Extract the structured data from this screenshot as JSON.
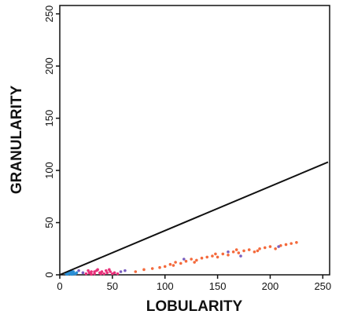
{
  "chart_data": {
    "type": "scatter",
    "xlabel": "LOBULARITY",
    "ylabel": "GRANULARITY",
    "xlim": [
      0,
      255
    ],
    "ylim": [
      0,
      255
    ],
    "xticks": [
      0,
      50,
      100,
      150,
      200,
      250
    ],
    "yticks": [
      0,
      50,
      100,
      150,
      200,
      250
    ],
    "series": [
      {
        "color": "#2a8fd6",
        "x": [
          6,
          8,
          10,
          12,
          14,
          9,
          11,
          13,
          7,
          15,
          10,
          12,
          16,
          8,
          11
        ],
        "values": [
          1,
          2,
          1,
          2,
          1,
          3,
          0.5,
          3,
          0.5,
          1,
          2,
          0.5,
          2,
          1,
          4
        ]
      },
      {
        "color": "#e8307a",
        "x": [
          25,
          28,
          30,
          33,
          35,
          38,
          40,
          42,
          45,
          48,
          50,
          52,
          30,
          36,
          44,
          27,
          39,
          47,
          33,
          55
        ],
        "values": [
          1,
          2,
          3,
          1,
          4,
          2,
          3,
          1,
          2,
          3,
          1,
          2,
          0.5,
          5,
          4,
          4,
          1,
          5,
          3,
          1
        ]
      },
      {
        "color": "#f46a3c",
        "x": [
          72,
          80,
          88,
          95,
          100,
          105,
          110,
          115,
          120,
          125,
          130,
          135,
          140,
          145,
          150,
          155,
          160,
          165,
          170,
          175,
          180,
          185,
          190,
          195,
          200,
          205,
          210,
          215,
          220,
          225,
          108,
          128,
          148,
          168,
          188
        ],
        "values": [
          3,
          5,
          6,
          7,
          8,
          10,
          12,
          11,
          13,
          15,
          14,
          16,
          17,
          18,
          17,
          20,
          19,
          22,
          21,
          23,
          24,
          22,
          25,
          26,
          27,
          25,
          28,
          29,
          30,
          31,
          9,
          12,
          20,
          24,
          23
        ]
      },
      {
        "color": "#7a5fc0",
        "x": [
          58,
          62,
          118,
          160,
          172,
          208,
          18,
          22
        ],
        "values": [
          3,
          4,
          15,
          22,
          18,
          27,
          4,
          2
        ]
      }
    ],
    "line": {
      "color": "#111111",
      "x": [
        0,
        255
      ],
      "values": [
        0,
        108
      ]
    }
  }
}
